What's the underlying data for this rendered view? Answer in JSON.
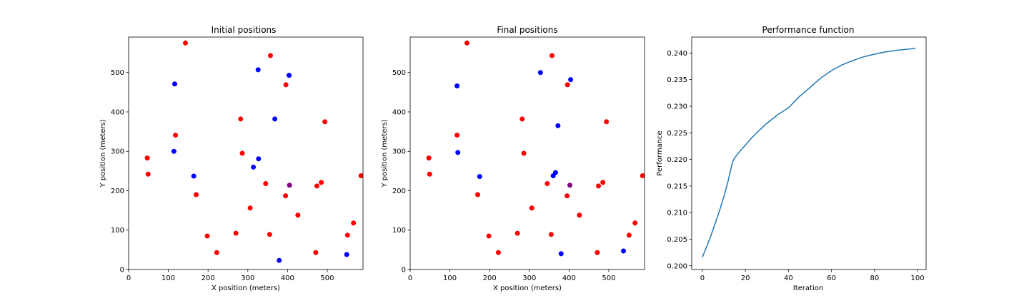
{
  "colors": {
    "red": "#ff0000",
    "blue": "#0000ff",
    "purple": "#800080",
    "line": "#1f77b4",
    "axis": "#000000",
    "background": "#ffffff"
  },
  "chart_data": [
    {
      "type": "scatter",
      "title": "Initial positions",
      "xlabel": "X position (meters)",
      "ylabel": "Y position (meters)",
      "xlim": [
        0,
        590
      ],
      "ylim": [
        0,
        590
      ],
      "xticks": [
        0,
        100,
        200,
        300,
        400,
        500
      ],
      "yticks": [
        0,
        100,
        200,
        300,
        400,
        500
      ],
      "grid": false,
      "series": [
        {
          "color": "red",
          "points": [
            [
              143,
              575
            ],
            [
              357,
              543
            ],
            [
              396,
              469
            ],
            [
              118,
              341
            ],
            [
              282,
              382
            ],
            [
              286,
              295
            ],
            [
              494,
              375
            ],
            [
              47,
              283
            ],
            [
              49,
              242
            ],
            [
              585,
              238
            ],
            [
              170,
              190
            ],
            [
              345,
              218
            ],
            [
              474,
              212
            ],
            [
              485,
              221
            ],
            [
              395,
              187
            ],
            [
              306,
              156
            ],
            [
              426,
              138
            ],
            [
              566,
              118
            ],
            [
              198,
              85
            ],
            [
              270,
              92
            ],
            [
              355,
              89
            ],
            [
              551,
              87
            ],
            [
              222,
              43
            ],
            [
              471,
              43
            ]
          ]
        },
        {
          "color": "blue",
          "points": [
            [
              326,
              507
            ],
            [
              404,
              493
            ],
            [
              116,
              471
            ],
            [
              368,
              382
            ],
            [
              114,
              300
            ],
            [
              327,
              281
            ],
            [
              314,
              260
            ],
            [
              164,
              237
            ],
            [
              379,
              23
            ],
            [
              549,
              38
            ]
          ]
        },
        {
          "color": "purple",
          "points": [
            [
              405,
              214
            ]
          ]
        }
      ]
    },
    {
      "type": "scatter",
      "title": "Final positions",
      "xlabel": "X position (meters)",
      "ylabel": "Y position (meters)",
      "xlim": [
        0,
        590
      ],
      "ylim": [
        0,
        590
      ],
      "xticks": [
        0,
        100,
        200,
        300,
        400,
        500
      ],
      "yticks": [
        0,
        100,
        200,
        300,
        400,
        500
      ],
      "grid": false,
      "series": [
        {
          "color": "red",
          "points": [
            [
              143,
              575
            ],
            [
              357,
              543
            ],
            [
              396,
              469
            ],
            [
              118,
              341
            ],
            [
              282,
              382
            ],
            [
              286,
              295
            ],
            [
              494,
              375
            ],
            [
              47,
              283
            ],
            [
              49,
              242
            ],
            [
              585,
              238
            ],
            [
              170,
              190
            ],
            [
              345,
              218
            ],
            [
              474,
              212
            ],
            [
              485,
              221
            ],
            [
              395,
              187
            ],
            [
              306,
              156
            ],
            [
              426,
              138
            ],
            [
              566,
              118
            ],
            [
              198,
              85
            ],
            [
              270,
              92
            ],
            [
              355,
              89
            ],
            [
              551,
              87
            ],
            [
              222,
              43
            ],
            [
              471,
              43
            ]
          ]
        },
        {
          "color": "blue",
          "points": [
            [
              328,
              500
            ],
            [
              404,
              482
            ],
            [
              118,
              466
            ],
            [
              372,
              365
            ],
            [
              120,
              297
            ],
            [
              175,
              236
            ],
            [
              360,
              238
            ],
            [
              366,
              246
            ],
            [
              380,
              40
            ],
            [
              537,
              47
            ]
          ]
        },
        {
          "color": "purple",
          "points": [
            [
              402,
              214
            ]
          ]
        }
      ]
    },
    {
      "type": "line",
      "title": "Performance function",
      "xlabel": "Iteration",
      "ylabel": "Performance",
      "xlim": [
        -4.95,
        103.95
      ],
      "ylim": [
        0.1993,
        0.243
      ],
      "xticks": [
        0,
        20,
        40,
        60,
        80,
        100
      ],
      "yticks": [
        0.2,
        0.205,
        0.21,
        0.215,
        0.22,
        0.225,
        0.23,
        0.235,
        0.24
      ],
      "ytick_labels": [
        "0.200",
        "0.205",
        "0.210",
        "0.215",
        "0.220",
        "0.225",
        "0.230",
        "0.235",
        "0.240"
      ],
      "grid": false,
      "series": [
        {
          "color": "line",
          "x": [
            0,
            2,
            4,
            6,
            8,
            10,
            12,
            14,
            15,
            16,
            18,
            20,
            23,
            26,
            30,
            35,
            40,
            45,
            50,
            55,
            60,
            65,
            70,
            75,
            80,
            85,
            90,
            95,
            99
          ],
          "y": [
            0.2016,
            0.2036,
            0.2057,
            0.208,
            0.2104,
            0.213,
            0.216,
            0.2195,
            0.2203,
            0.2208,
            0.2218,
            0.2227,
            0.2241,
            0.2253,
            0.2268,
            0.2284,
            0.2297,
            0.2318,
            0.2335,
            0.2353,
            0.2367,
            0.2378,
            0.2386,
            0.2393,
            0.2398,
            0.2402,
            0.2405,
            0.2407,
            0.2409
          ]
        }
      ]
    }
  ]
}
